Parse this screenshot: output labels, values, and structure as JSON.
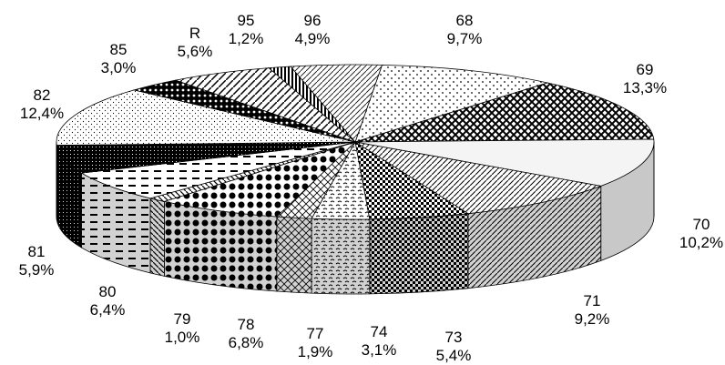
{
  "chart_data": {
    "type": "pie",
    "style": "3d-exploded-free",
    "categories": [
      "68",
      "69",
      "70",
      "71",
      "73",
      "74",
      "77",
      "78",
      "79",
      "80",
      "81",
      "82",
      "85",
      "R",
      "95",
      "96"
    ],
    "values": [
      9.7,
      13.3,
      10.2,
      9.2,
      5.4,
      3.1,
      1.9,
      6.8,
      1.0,
      6.4,
      5.9,
      12.4,
      3.0,
      5.6,
      1.2,
      4.9
    ],
    "value_labels": [
      "9,7%",
      "13,3%",
      "10,2%",
      "9,2%",
      "5,4%",
      "3,1%",
      "1,9%",
      "6,8%",
      "1,0%",
      "6,4%",
      "5,9%",
      "12,4%",
      "3,0%",
      "5,6%",
      "1,2%",
      "4,9%"
    ],
    "title": "",
    "legend": "none"
  }
}
